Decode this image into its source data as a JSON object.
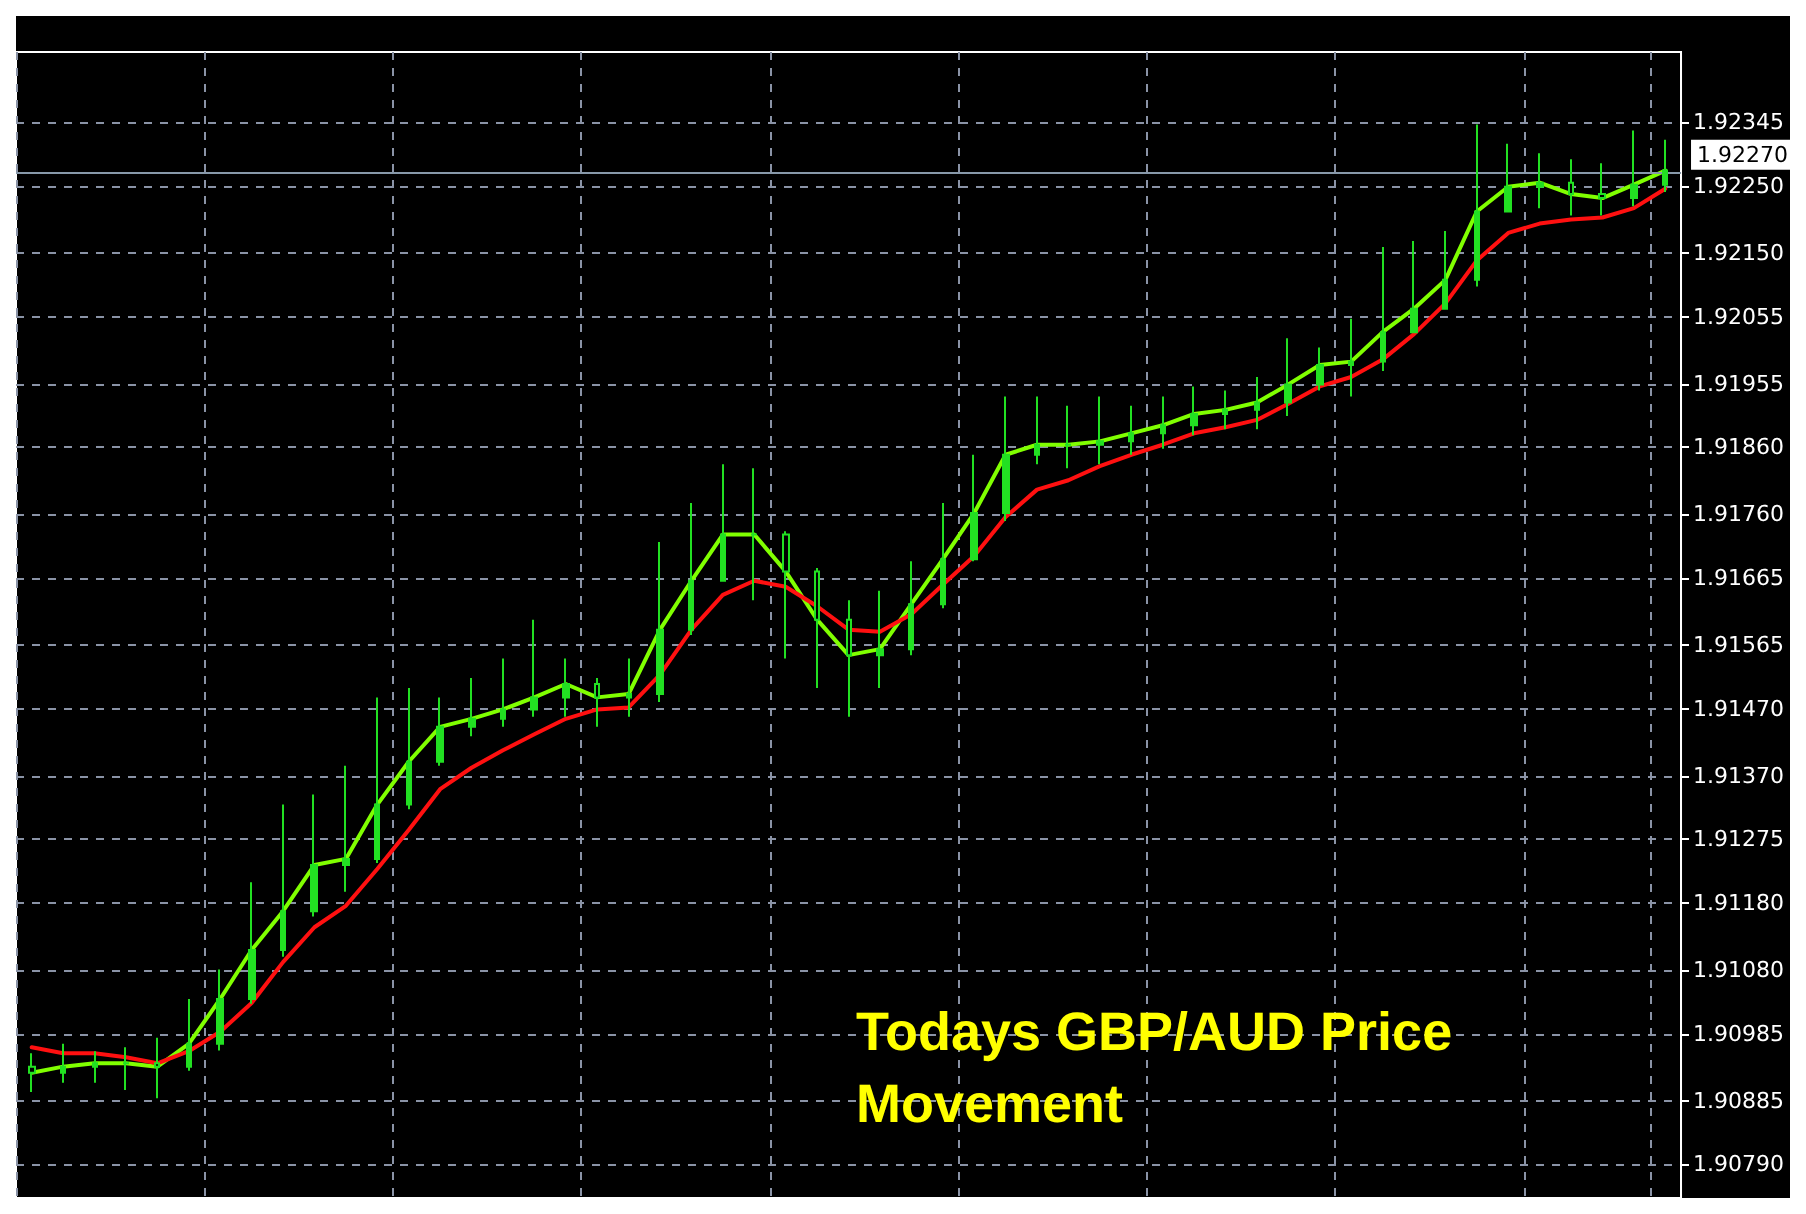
{
  "chart_data": {
    "type": "candlestick",
    "title": "Todays GBP/AUD Price Movement",
    "categories": [
      null,
      null,
      null,
      null,
      null,
      null,
      null,
      null,
      null,
      null,
      null,
      null,
      null,
      null,
      null,
      null,
      null,
      null,
      null,
      null,
      null,
      null,
      null,
      null,
      null,
      null,
      null,
      null,
      null,
      null,
      null,
      null,
      null,
      null,
      null,
      null,
      null,
      null,
      null,
      null,
      null,
      null,
      null,
      null,
      null,
      null,
      null,
      null,
      null,
      null,
      null,
      null,
      null
    ],
    "series": [
      {
        "type": "candlestick",
        "color": "#22e022",
        "ohlc": [
          [
            1.90936,
            1.90956,
            1.90898,
            1.90927
          ],
          [
            1.90927,
            1.9097,
            1.90912,
            1.90936
          ],
          [
            1.90936,
            1.90959,
            1.90912,
            1.90941
          ],
          [
            1.90941,
            1.90965,
            1.90901,
            1.90941
          ],
          [
            1.90941,
            1.90979,
            1.90889,
            1.90936
          ],
          [
            1.90936,
            1.91037,
            1.9093,
            1.9097
          ],
          [
            1.9097,
            1.91081,
            1.9096,
            1.91037
          ],
          [
            1.91037,
            1.91211,
            1.9103,
            1.9111
          ],
          [
            1.9111,
            1.91327,
            1.911,
            1.91168
          ],
          [
            1.91168,
            1.91342,
            1.9116,
            1.91237
          ],
          [
            1.91237,
            1.91385,
            1.91197,
            1.91246
          ],
          [
            1.91246,
            1.91487,
            1.9124,
            1.91327
          ],
          [
            1.91327,
            1.91501,
            1.9132,
            1.91391
          ],
          [
            1.91391,
            1.91487,
            1.91385,
            1.91443
          ],
          [
            1.91443,
            1.91516,
            1.91429,
            1.91455
          ],
          [
            1.91455,
            1.91545,
            1.91443,
            1.91469
          ],
          [
            1.91469,
            1.91603,
            1.91458,
            1.91487
          ],
          [
            1.91487,
            1.91545,
            1.91458,
            1.91507
          ],
          [
            1.91507,
            1.91516,
            1.91443,
            1.91487
          ],
          [
            1.91487,
            1.91545,
            1.91458,
            1.91492
          ],
          [
            1.91492,
            1.91719,
            1.9148,
            1.91588
          ],
          [
            1.91588,
            1.91777,
            1.9158,
            1.91661
          ],
          [
            1.91661,
            1.91835,
            1.91661,
            1.9173
          ],
          [
            1.9173,
            1.91829,
            1.91632,
            1.9173
          ],
          [
            1.9173,
            1.91735,
            1.91545,
            1.91675
          ],
          [
            1.91675,
            1.9168,
            1.91501,
            1.91603
          ],
          [
            1.91603,
            1.91632,
            1.91458,
            1.9155
          ],
          [
            1.9155,
            1.91646,
            1.91501,
            1.91559
          ],
          [
            1.91559,
            1.9169,
            1.9155,
            1.91626
          ],
          [
            1.91626,
            1.91777,
            1.9162,
            1.91693
          ],
          [
            1.91693,
            1.91849,
            1.9169,
            1.91762
          ],
          [
            1.91762,
            1.91936,
            1.9175,
            1.91849
          ],
          [
            1.91849,
            1.91936,
            1.91835,
            1.91864
          ],
          [
            1.91864,
            1.91922,
            1.91829,
            1.91864
          ],
          [
            1.91864,
            1.91936,
            1.91835,
            1.91869
          ],
          [
            1.91869,
            1.91922,
            1.91849,
            1.91881
          ],
          [
            1.91881,
            1.91936,
            1.91858,
            1.91893
          ],
          [
            1.91893,
            1.91951,
            1.91878,
            1.9191
          ],
          [
            1.9191,
            1.91945,
            1.91887,
            1.91916
          ],
          [
            1.91916,
            1.91965,
            1.91887,
            1.91927
          ],
          [
            1.91927,
            1.92023,
            1.91907,
            1.91954
          ],
          [
            1.91954,
            1.92009,
            1.91945,
            1.91983
          ],
          [
            1.91983,
            1.92052,
            1.91936,
            1.91988
          ],
          [
            1.91988,
            1.92159,
            1.91974,
            1.92032
          ],
          [
            1.92032,
            1.92168,
            1.92032,
            1.92067
          ],
          [
            1.92067,
            1.92183,
            1.92067,
            1.9211
          ],
          [
            1.9211,
            1.92342,
            1.921,
            1.92212
          ],
          [
            1.92212,
            1.92313,
            1.92212,
            1.92249
          ],
          [
            1.92249,
            1.92299,
            1.92217,
            1.92255
          ],
          [
            1.92255,
            1.9229,
            1.92206,
            1.92238
          ],
          [
            1.92238,
            1.92284,
            1.92206,
            1.92232
          ],
          [
            1.92232,
            1.92333,
            1.9222,
            1.92252
          ],
          [
            1.92252,
            1.92319,
            1.92241,
            1.92273
          ]
        ]
      },
      {
        "type": "line",
        "color": "#80ff00",
        "values": [
          1.90927,
          1.90936,
          1.90941,
          1.90941,
          1.90936,
          1.9097,
          1.91037,
          1.9111,
          1.91168,
          1.91237,
          1.91246,
          1.91327,
          1.91391,
          1.91443,
          1.91455,
          1.91469,
          1.91487,
          1.91507,
          1.91487,
          1.91492,
          1.91588,
          1.91661,
          1.9173,
          1.9173,
          1.91675,
          1.91603,
          1.9155,
          1.91559,
          1.91626,
          1.91693,
          1.91762,
          1.91849,
          1.91864,
          1.91864,
          1.91869,
          1.91881,
          1.91893,
          1.9191,
          1.91916,
          1.91927,
          1.91954,
          1.91983,
          1.91988,
          1.92032,
          1.92067,
          1.9211,
          1.92212,
          1.92249,
          1.92255,
          1.92238,
          1.92232,
          1.92252,
          1.92273
        ]
      },
      {
        "type": "line",
        "color": "#ff1010",
        "values": [
          1.90965,
          1.90956,
          1.90956,
          1.9095,
          1.90941,
          1.90959,
          1.90988,
          1.91031,
          1.91092,
          1.91144,
          1.91176,
          1.91231,
          1.91289,
          1.9135,
          1.91382,
          1.91408,
          1.91432,
          1.91455,
          1.91469,
          1.91472,
          1.91521,
          1.91588,
          1.9164,
          1.91661,
          1.91652,
          1.91623,
          1.91588,
          1.91585,
          1.91611,
          1.91655,
          1.91698,
          1.91756,
          1.91797,
          1.91811,
          1.91832,
          1.91849,
          1.91864,
          1.91881,
          1.9189,
          1.91901,
          1.91925,
          1.91951,
          1.91965,
          1.91991,
          1.92029,
          1.92075,
          1.92139,
          1.9218,
          1.92194,
          1.922,
          1.92203,
          1.92217,
          1.92246
        ]
      }
    ],
    "ylim": [
      1.9074,
      1.9245
    ],
    "yticks": [
      {
        "value": 1.9079,
        "label": "1.90790"
      },
      {
        "value": 1.90885,
        "label": "1.90885"
      },
      {
        "value": 1.90985,
        "label": "1.90985"
      },
      {
        "value": 1.9108,
        "label": "1.91080"
      },
      {
        "value": 1.9118,
        "label": "1.91180"
      },
      {
        "value": 1.91275,
        "label": "1.91275"
      },
      {
        "value": 1.9137,
        "label": "1.91370"
      },
      {
        "value": 1.9147,
        "label": "1.91470"
      },
      {
        "value": 1.91565,
        "label": "1.91565"
      },
      {
        "value": 1.91665,
        "label": "1.91665"
      },
      {
        "value": 1.9176,
        "label": "1.91760"
      },
      {
        "value": 1.9186,
        "label": "1.91860"
      },
      {
        "value": 1.91955,
        "label": "1.91955"
      },
      {
        "value": 1.92055,
        "label": "1.92055"
      },
      {
        "value": 1.9215,
        "label": "1.92150"
      },
      {
        "value": 1.9225,
        "label": "1.92250"
      },
      {
        "value": 1.92345,
        "label": "1.92345"
      }
    ],
    "ref_lines": [
      {
        "axis": "y",
        "value": 1.9227,
        "label": "1.92270",
        "color": "#8899aa"
      }
    ],
    "grid": true,
    "tick_labels": "y",
    "marker": "none",
    "line_style": "solid"
  }
}
